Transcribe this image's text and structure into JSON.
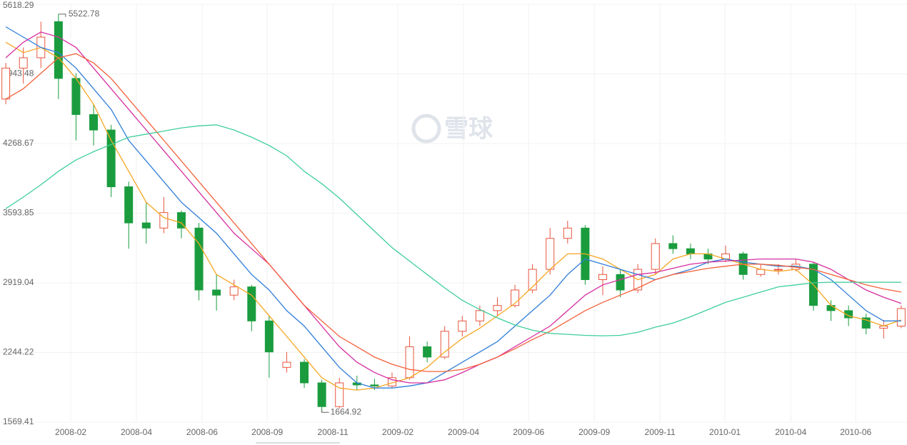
{
  "chart_data": {
    "type": "candlestick",
    "watermark": "雪球",
    "categories": [
      null,
      null,
      null,
      null,
      null,
      null,
      null,
      null,
      null,
      null,
      null,
      null,
      null,
      null,
      null,
      null,
      null,
      null,
      null,
      null,
      null,
      null,
      null,
      null,
      null,
      null,
      null,
      null,
      null,
      null,
      null,
      null,
      null,
      null,
      null,
      null,
      null,
      null,
      null,
      null,
      null,
      null,
      null,
      null,
      null,
      null,
      null,
      null,
      null,
      null,
      null,
      null
    ],
    "open": [
      4700,
      5000,
      5100,
      5450,
      4900,
      4550,
      4400,
      3850,
      3500,
      3450,
      3600,
      3450,
      2850,
      2800,
      2880,
      2550,
      2100,
      2150,
      1950,
      1720,
      1950,
      1930,
      1920,
      2000,
      2300,
      2200,
      2450,
      2550,
      2650,
      2700,
      2850,
      3050,
      3350,
      3450,
      2950,
      3000,
      2850,
      3050,
      3300,
      3250,
      3200,
      3150,
      3200,
      3000,
      3050,
      3050,
      3100,
      2700,
      2650,
      2580,
      2480,
      2500
    ],
    "high": [
      5050,
      5200,
      5450,
      5522.78,
      4950,
      4650,
      4450,
      3900,
      3700,
      3750,
      3620,
      3500,
      3000,
      2950,
      2900,
      2600,
      2250,
      2180,
      1980,
      2000,
      2020,
      1990,
      2050,
      2400,
      2350,
      2500,
      2600,
      2700,
      2780,
      2900,
      3100,
      3450,
      3520,
      3480,
      3080,
      3050,
      3100,
      3350,
      3380,
      3300,
      3250,
      3280,
      3220,
      3100,
      3100,
      3150,
      3120,
      2750,
      2700,
      2620,
      2560,
      2700
    ],
    "low": [
      4650,
      4850,
      5000,
      4700,
      4300,
      4250,
      3750,
      3250,
      3300,
      3400,
      3350,
      2750,
      2650,
      2750,
      2450,
      2000,
      2050,
      1900,
      1664.92,
      1700,
      1880,
      1880,
      1900,
      1980,
      2150,
      2180,
      2400,
      2500,
      2600,
      2680,
      2820,
      3000,
      3300,
      2900,
      2800,
      2780,
      2820,
      3000,
      3200,
      3150,
      3100,
      3120,
      2950,
      2980,
      3000,
      3030,
      2650,
      2550,
      2500,
      2420,
      2380,
      2480
    ],
    "close": [
      5000,
      5100,
      5300,
      4900,
      4550,
      4400,
      3850,
      3500,
      3450,
      3600,
      3450,
      2850,
      2800,
      2880,
      2550,
      2250,
      2150,
      1950,
      1720,
      1950,
      1930,
      1920,
      2000,
      2300,
      2200,
      2450,
      2550,
      2650,
      2700,
      2850,
      3050,
      3350,
      3450,
      2950,
      3000,
      2850,
      3050,
      3300,
      3250,
      3200,
      3150,
      3200,
      3000,
      3050,
      3050,
      3100,
      2700,
      2650,
      2580,
      2480,
      2500,
      2670
    ],
    "up_color": "#e8553f",
    "down_color": "#1a9c3e",
    "series": [
      {
        "color": "#f5a623",
        "values": [
          5250,
          5150,
          5200,
          5100,
          4900,
          4650,
          4300,
          4000,
          3700,
          3550,
          3500,
          3300,
          3000,
          2900,
          2800,
          2600,
          2400,
          2200,
          2000,
          1900,
          1880,
          1900,
          1950,
          2000,
          2100,
          2250,
          2380,
          2480,
          2600,
          2720,
          2880,
          3050,
          3200,
          3200,
          3150,
          3050,
          2950,
          3000,
          3150,
          3200,
          3200,
          3150,
          3100,
          3050,
          3030,
          3050,
          2900,
          2700,
          2600,
          2560,
          2500,
          2560
        ]
      },
      {
        "color": "#2f7ed8",
        "values": [
          5400,
          5300,
          5200,
          5150,
          5000,
          4800,
          4600,
          4300,
          4100,
          3900,
          3700,
          3550,
          3400,
          3200,
          3000,
          2850,
          2650,
          2500,
          2300,
          2100,
          1950,
          1900,
          1900,
          1920,
          1950,
          2050,
          2150,
          2250,
          2350,
          2500,
          2650,
          2800,
          3000,
          3150,
          3100,
          3050,
          3000,
          2950,
          3000,
          3050,
          3120,
          3150,
          3120,
          3100,
          3080,
          3080,
          3050,
          2950,
          2800,
          2650,
          2550,
          2550
        ]
      },
      {
        "color": "#d62ea0",
        "values": [
          5100,
          5250,
          5350,
          5300,
          5200,
          5000,
          4800,
          4600,
          4400,
          4200,
          4000,
          3800,
          3600,
          3400,
          3250,
          3100,
          2900,
          2700,
          2500,
          2300,
          2150,
          2050,
          1980,
          1950,
          1950,
          1980,
          2050,
          2130,
          2200,
          2300,
          2400,
          2500,
          2650,
          2800,
          2900,
          2950,
          3000,
          3020,
          3060,
          3100,
          3120,
          3130,
          3140,
          3150,
          3150,
          3150,
          3120,
          3050,
          2950,
          2850,
          2780,
          2720
        ]
      },
      {
        "color": "#f4603a",
        "values": [
          4700,
          4800,
          4950,
          5100,
          5140,
          5050,
          4900,
          4700,
          4500,
          4300,
          4100,
          3900,
          3700,
          3500,
          3300,
          3100,
          2900,
          2700,
          2550,
          2400,
          2300,
          2200,
          2130,
          2080,
          2060,
          2060,
          2080,
          2130,
          2200,
          2280,
          2370,
          2450,
          2550,
          2650,
          2730,
          2800,
          2870,
          2950,
          3000,
          3030,
          3060,
          3080,
          3100,
          3100,
          3090,
          3070,
          3050,
          3000,
          2950,
          2900,
          2860,
          2830
        ]
      },
      {
        "color": "#3fcf9a",
        "values": [
          3638,
          3750,
          3870,
          4000,
          4110,
          4190,
          4260,
          4330,
          4360,
          4390,
          4420,
          4440,
          4450,
          4400,
          4330,
          4250,
          4150,
          4000,
          3880,
          3740,
          3580,
          3420,
          3260,
          3130,
          3000,
          2870,
          2750,
          2660,
          2580,
          2510,
          2460,
          2430,
          2420,
          2410,
          2406,
          2410,
          2440,
          2490,
          2530,
          2590,
          2660,
          2730,
          2780,
          2830,
          2880,
          2900,
          2920,
          2925,
          2925,
          2925,
          2925,
          2925
        ]
      }
    ],
    "xlim": [
      -0.33,
      51.33
    ],
    "xticks": [
      {
        "value": 3.7,
        "label": "2008-02"
      },
      {
        "value": 7.44,
        "label": "2008-04"
      },
      {
        "value": 11.18,
        "label": "2008-06"
      },
      {
        "value": 14.89,
        "label": "2008-09"
      },
      {
        "value": 18.63,
        "label": "2008-11"
      },
      {
        "value": 22.33,
        "label": "2009-02"
      },
      {
        "value": 26.07,
        "label": "2009-04"
      },
      {
        "value": 29.78,
        "label": "2009-06"
      },
      {
        "value": 33.52,
        "label": "2009-09"
      },
      {
        "value": 37.26,
        "label": "2009-11"
      },
      {
        "value": 40.96,
        "label": "2010-01"
      },
      {
        "value": 44.71,
        "label": "2010-04"
      },
      {
        "value": 48.41,
        "label": "2010-06"
      }
    ],
    "ylim": [
      1569.41,
      5618.29
    ],
    "yticks": [
      1569.41,
      2244.22,
      2919.04,
      3593.85,
      4268.67,
      4943.48,
      5618.29
    ],
    "grid": true
  }
}
